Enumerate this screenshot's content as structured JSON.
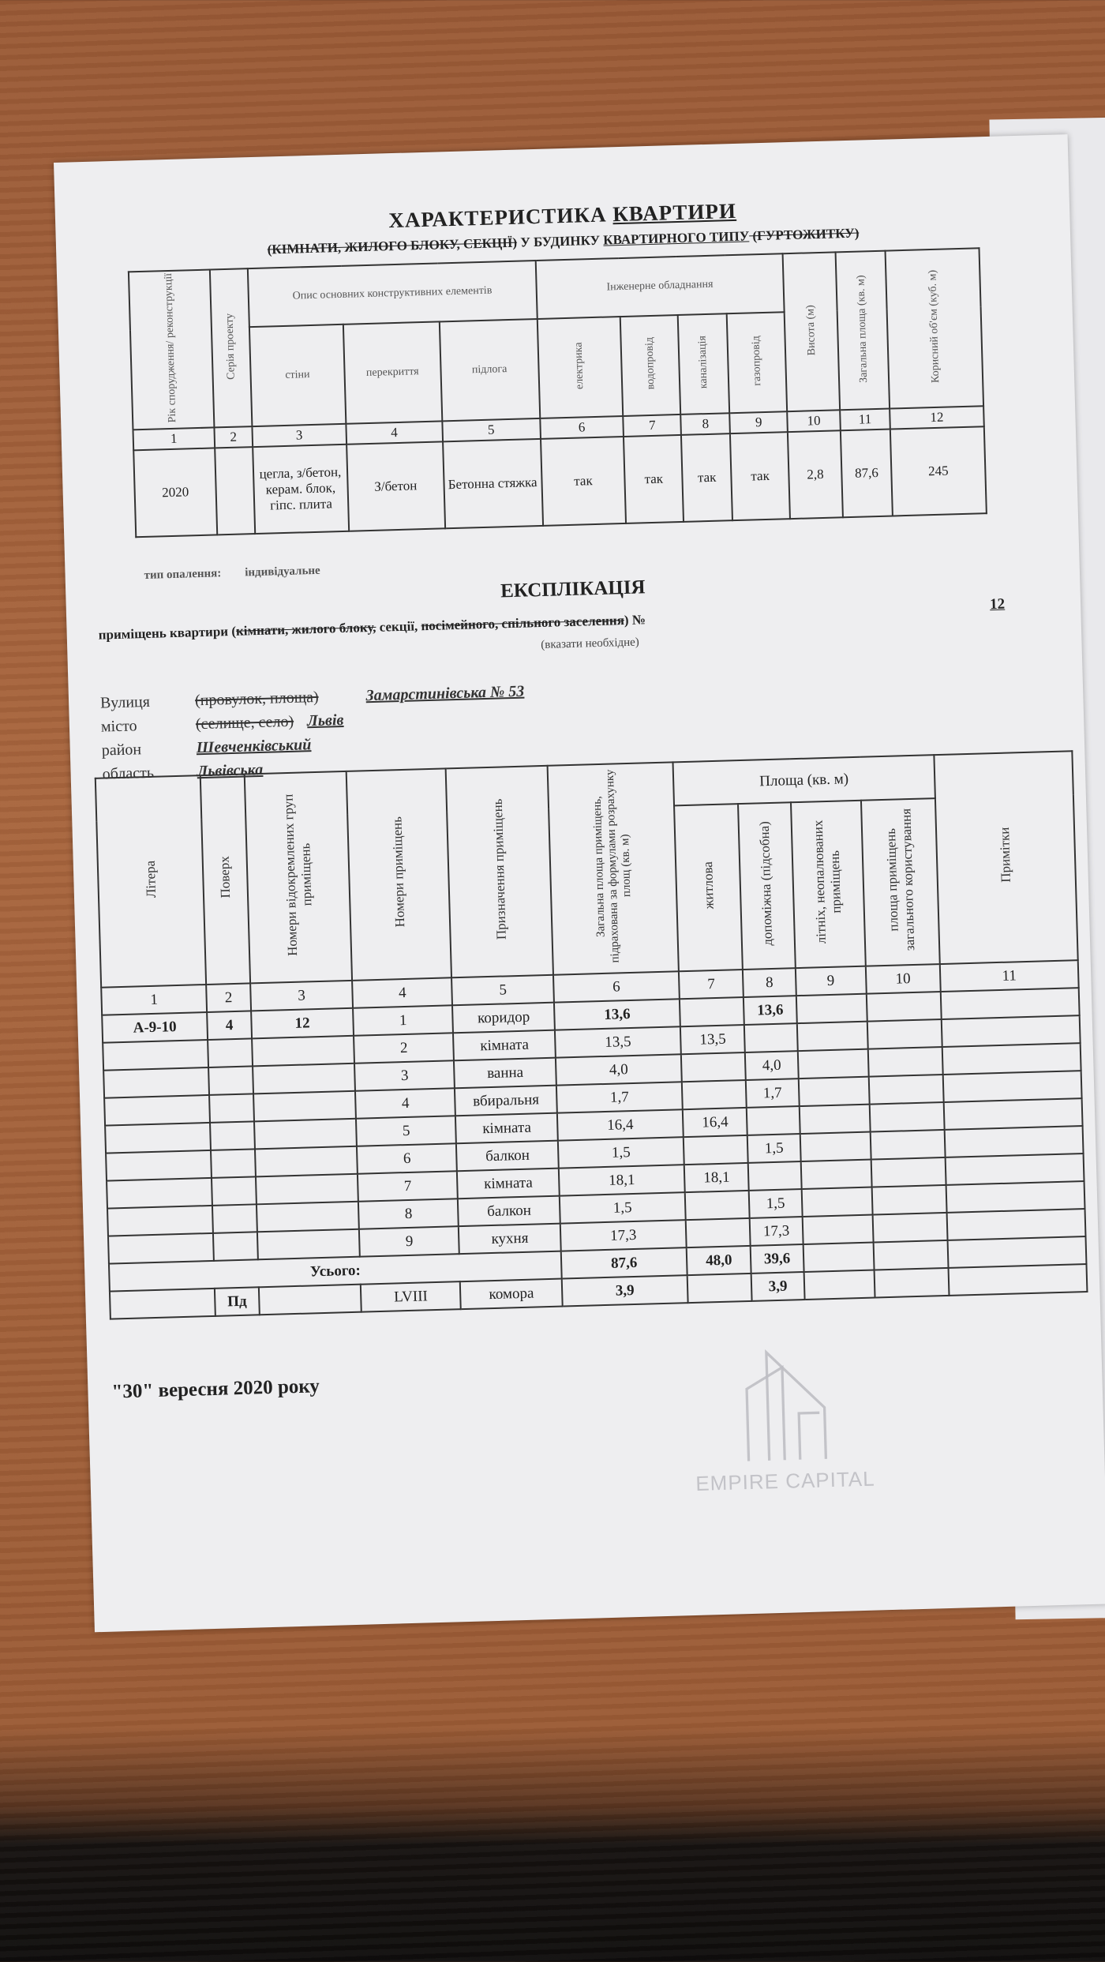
{
  "characteristic": {
    "title": [
      {
        "t": "ХАРАКТЕРИСТИКА ",
        "f": ""
      },
      {
        "t": "КВАРТИРИ",
        "f": "u"
      }
    ],
    "subtitle": [
      {
        "t": "(КІМНАТИ, ЖИЛОГО БЛОКУ, СЕКЦІЇ)",
        "f": "s"
      },
      {
        "t": " У БУДИНКУ ",
        "f": ""
      },
      {
        "t": "КВАРТИРНОГО ТИПУ",
        "f": "u"
      },
      {
        "t": " (ГУРТОЖИТКУ)",
        "f": "s"
      }
    ],
    "headers": {
      "year": "Рік спорудження/ реконструкції",
      "series": "Серія проекту",
      "structure": "Опис основних конструктивних елементів",
      "walls": "стіни",
      "ceiling": "перекриття",
      "floor": "підлога",
      "engineering": "Інженерне обладнання",
      "electric": "електрика",
      "water": "водопровід",
      "sewer": "каналізація",
      "gas": "газопровід",
      "height": "Висота (м)",
      "area": "Загальна площа (кв. м)",
      "volume": "Корисний об'єм (куб. м)"
    },
    "numbers": [
      "1",
      "2",
      "3",
      "4",
      "5",
      "6",
      "7",
      "8",
      "9",
      "10",
      "11",
      "12"
    ],
    "row": [
      "2020",
      "",
      "цегла, з/бетон, керам. блок, гіпс. плита",
      "З/бетон",
      "Бетонна стяжка",
      "так",
      "так",
      "так",
      "так",
      "2,8",
      "87,6",
      "245"
    ],
    "heating_label": "тип опалення:",
    "heating_value": "індивідуальне"
  },
  "explication": {
    "title": "ЕКСПЛІКАЦІЯ",
    "subtitle": [
      {
        "t": "приміщень квартири (",
        "f": ""
      },
      {
        "t": "кімнати, жилого блоку,",
        "f": "s"
      },
      {
        "t": " секції, ",
        "f": ""
      },
      {
        "t": "посімейного, спільного заселення",
        "f": "s"
      },
      {
        "t": ") №",
        "f": ""
      }
    ],
    "number": "12",
    "note": "(вказати необхідне)",
    "street_label": "Вулиця",
    "street_alt": "(провулок, площа)",
    "street_value": "Замарстинівська № 53",
    "city_label": "місто",
    "city_alt": "(селище, село)",
    "city_value": "Львів",
    "district_label": "район",
    "district_value": "Шевченківський",
    "region_label": "область",
    "region_value": "Львівська",
    "headers": {
      "litera": "Літера",
      "floor": "Поверх",
      "groups": "Номери відокремлених груп приміщень",
      "rooms": "Номери приміщень",
      "purpose": "Призначення приміщень",
      "total": "Загальна площа приміщень, підрахована за формулами розрахунку площ (кв. м)",
      "area": "Площа (кв. м)",
      "living": "житлова",
      "aux": "допоміжна (підсобна)",
      "summer": "літніх, неопалюваних приміщень",
      "common": "площа приміщень загального користування",
      "notes": "Примітки"
    },
    "numbers": [
      "1",
      "2",
      "3",
      "4",
      "5",
      "6",
      "7",
      "8",
      "9",
      "10",
      "11"
    ],
    "rows": [
      [
        "А-9-10",
        "4",
        "12",
        "1",
        "коридор",
        "13,6",
        "",
        "13,6",
        "",
        "",
        ""
      ],
      [
        "",
        "",
        "",
        "2",
        "кімната",
        "13,5",
        "13,5",
        "",
        "",
        "",
        ""
      ],
      [
        "",
        "",
        "",
        "3",
        "ванна",
        "4,0",
        "",
        "4,0",
        "",
        "",
        ""
      ],
      [
        "",
        "",
        "",
        "4",
        "вбиральня",
        "1,7",
        "",
        "1,7",
        "",
        "",
        ""
      ],
      [
        "",
        "",
        "",
        "5",
        "кімната",
        "16,4",
        "16,4",
        "",
        "",
        "",
        ""
      ],
      [
        "",
        "",
        "",
        "6",
        "балкон",
        "1,5",
        "",
        "1,5",
        "",
        "",
        ""
      ],
      [
        "",
        "",
        "",
        "7",
        "кімната",
        "18,1",
        "18,1",
        "",
        "",
        "",
        ""
      ],
      [
        "",
        "",
        "",
        "8",
        "балкон",
        "1,5",
        "",
        "1,5",
        "",
        "",
        ""
      ],
      [
        "",
        "",
        "",
        "9",
        "кухня",
        "17,3",
        "",
        "17,3",
        "",
        "",
        ""
      ]
    ],
    "total_label": "Усього:",
    "total": [
      "87,6",
      "48,0",
      "39,6",
      "",
      "",
      ""
    ],
    "extra_row": [
      "",
      "Пд",
      "",
      "LVIII",
      "комора",
      "3,9",
      "",
      "3,9",
      "",
      "",
      ""
    ],
    "date": "\"30\" вересня 2020 року"
  },
  "watermark": {
    "text": "EMPIRE CAPITAL"
  }
}
